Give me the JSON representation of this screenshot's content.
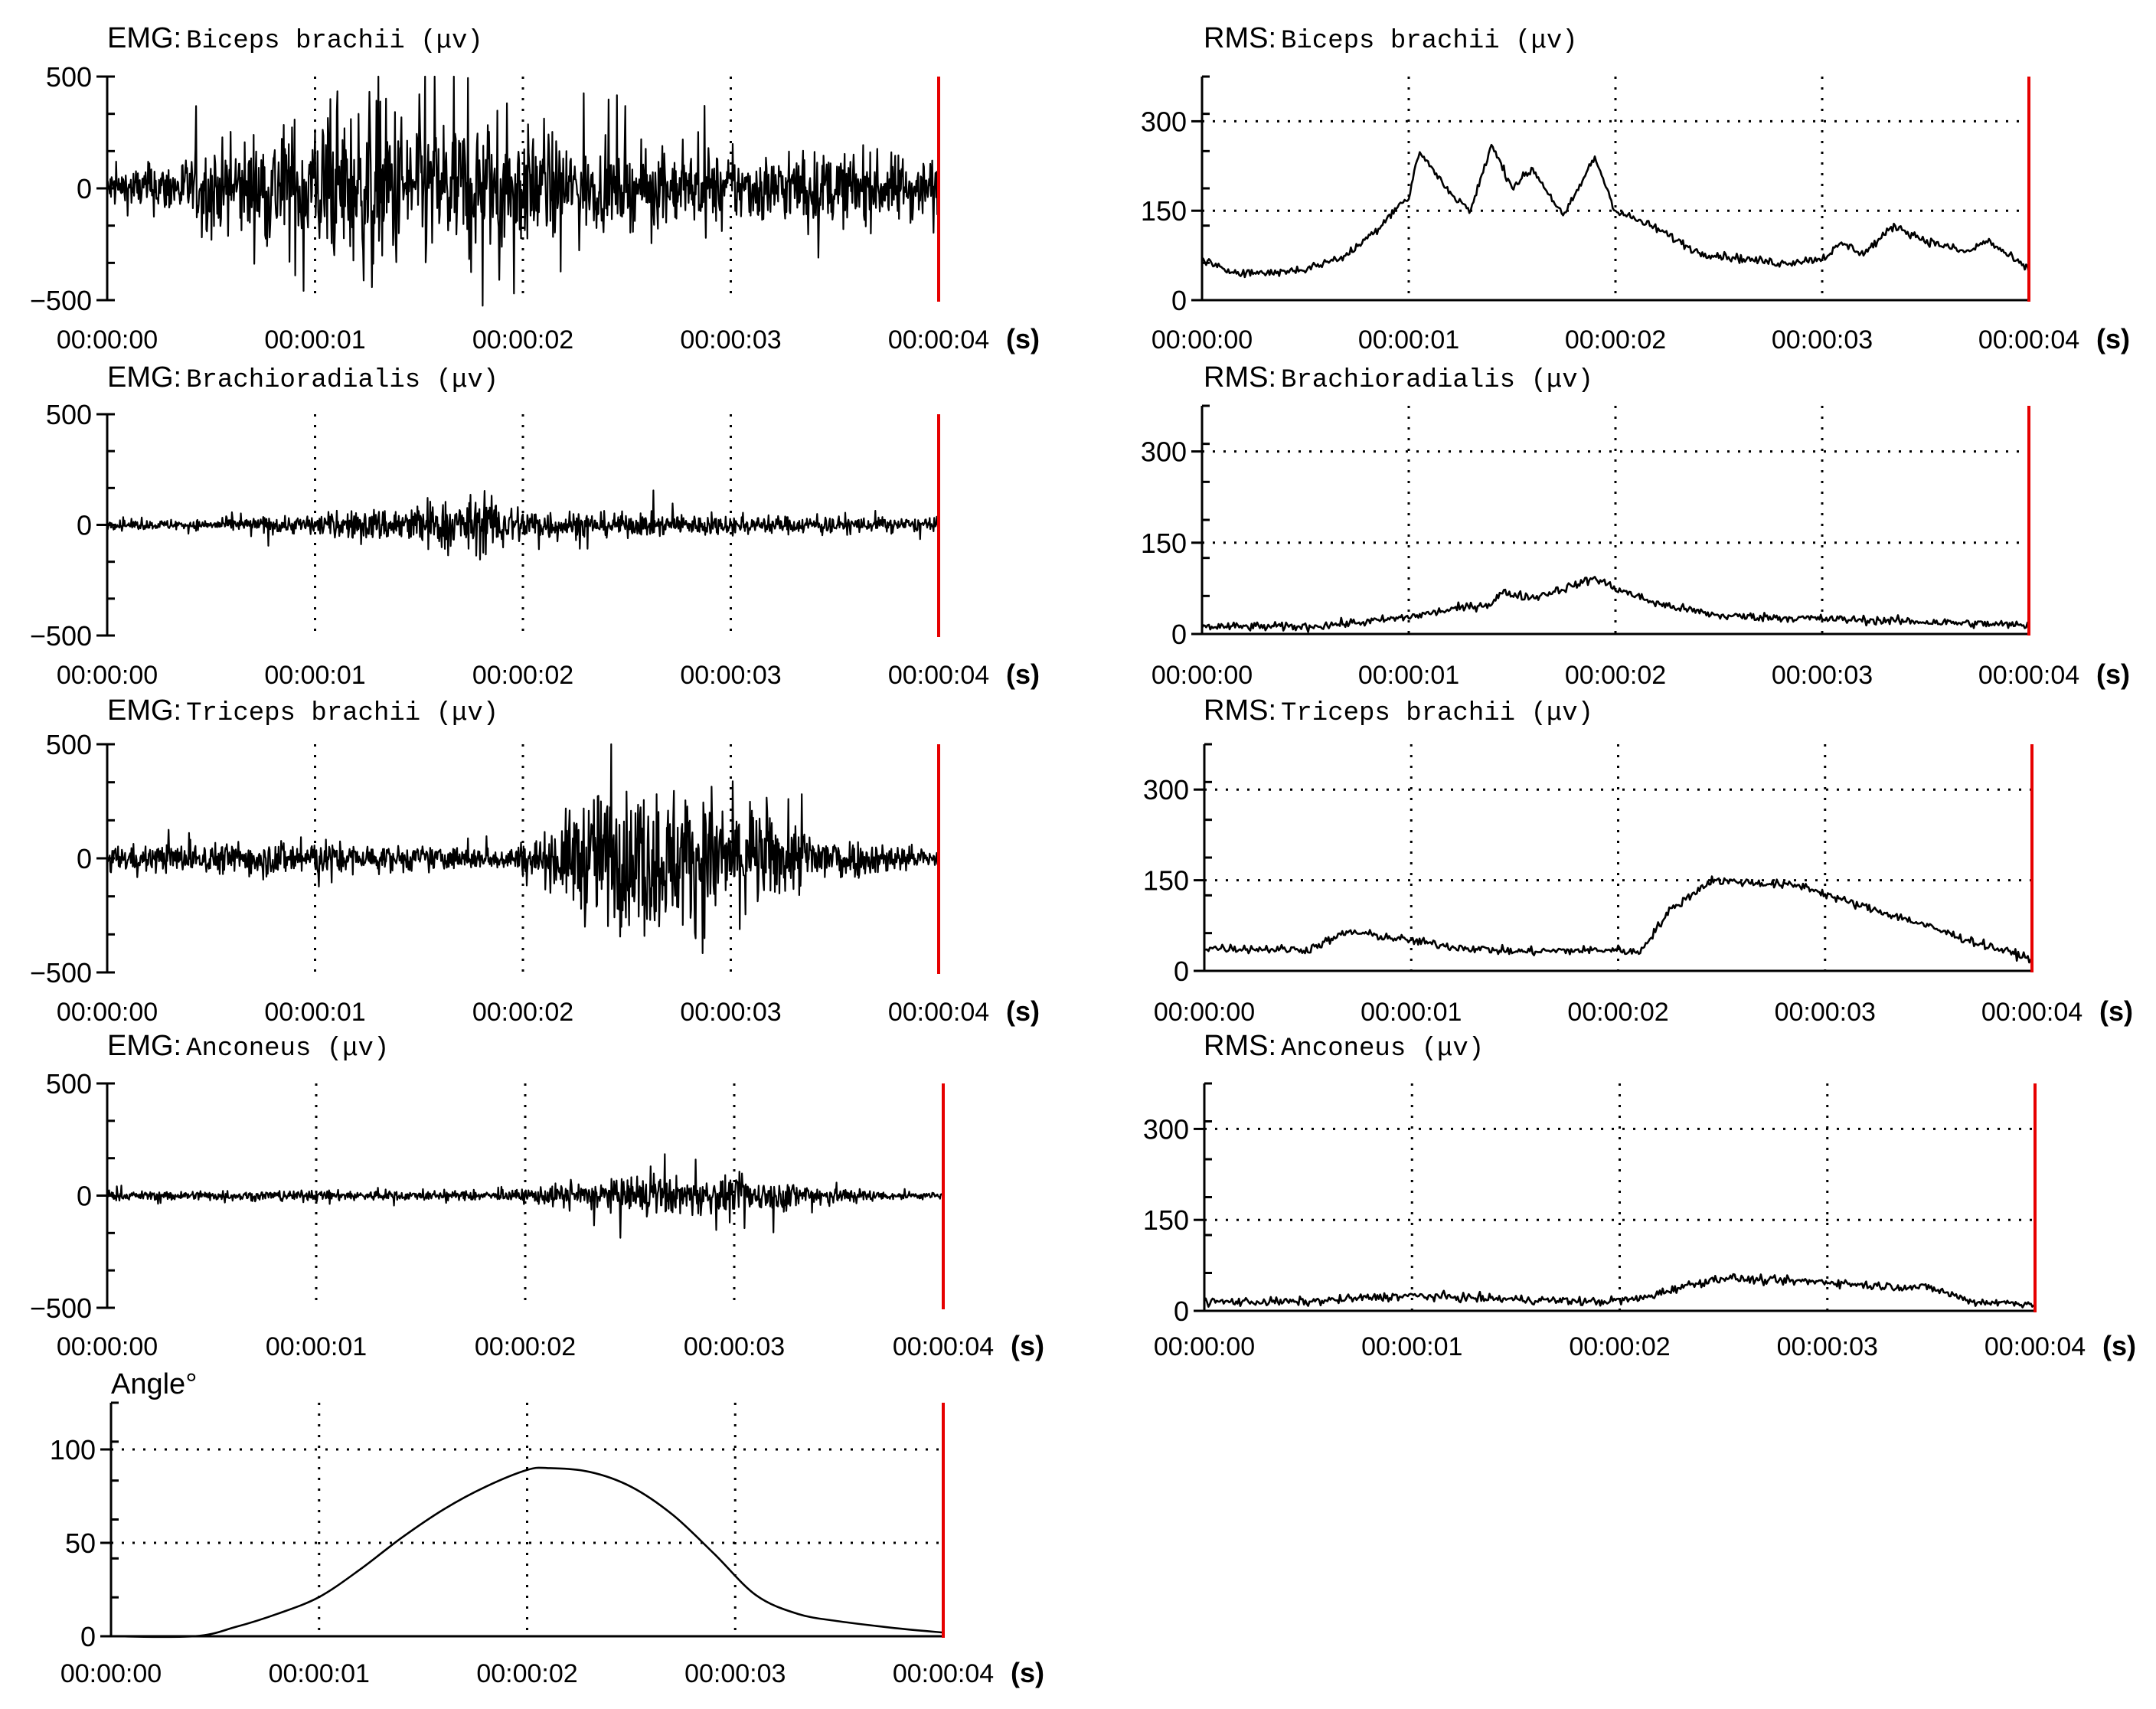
{
  "chart_data": [
    {
      "type": "line",
      "title_main": "EMG:",
      "title_sub": "Biceps brachii (μv)",
      "x_ticks": [
        "00:00:00",
        "00:00:01",
        "00:00:02",
        "00:00:03",
        "00:00:04"
      ],
      "x_unit": "(s)",
      "xlim": [
        0,
        4
      ],
      "y_ticks": [
        "500",
        "0",
        "−500"
      ],
      "y_tick_values": [
        500,
        0,
        -500
      ],
      "ylim": [
        -500,
        500
      ],
      "grid": "vertical-dotted",
      "cursor_color": "#e60000",
      "signal": "emg",
      "envelope": [
        [
          0,
          90
        ],
        [
          0.3,
          130
        ],
        [
          0.6,
          220
        ],
        [
          0.9,
          330
        ],
        [
          1.1,
          360
        ],
        [
          1.3,
          420
        ],
        [
          1.5,
          380
        ],
        [
          1.7,
          340
        ],
        [
          1.9,
          330
        ],
        [
          2.0,
          280
        ],
        [
          2.4,
          180
        ],
        [
          3.0,
          160
        ],
        [
          3.5,
          170
        ],
        [
          4.0,
          150
        ]
      ]
    },
    {
      "type": "line",
      "title_main": "EMG:",
      "title_sub": "Brachioradialis (μv)",
      "x_ticks": [
        "00:00:00",
        "00:00:01",
        "00:00:02",
        "00:00:03",
        "00:00:04"
      ],
      "x_unit": "(s)",
      "xlim": [
        0,
        4
      ],
      "y_ticks": [
        "500",
        "0",
        "−500"
      ],
      "y_tick_values": [
        500,
        0,
        -500
      ],
      "ylim": [
        -500,
        500
      ],
      "grid": "vertical-dotted",
      "cursor_color": "#e60000",
      "signal": "emg",
      "envelope": [
        [
          0,
          20
        ],
        [
          0.5,
          25
        ],
        [
          1.0,
          50
        ],
        [
          1.4,
          90
        ],
        [
          1.8,
          140
        ],
        [
          2.0,
          90
        ],
        [
          2.3,
          60
        ],
        [
          3.0,
          45
        ],
        [
          3.5,
          40
        ],
        [
          4.0,
          30
        ]
      ]
    },
    {
      "type": "line",
      "title_main": "EMG:",
      "title_sub": "Triceps brachii (μv)",
      "x_ticks": [
        "00:00:00",
        "00:00:01",
        "00:00:02",
        "00:00:03",
        "00:00:04"
      ],
      "x_unit": "(s)",
      "xlim": [
        0,
        4
      ],
      "y_ticks": [
        "500",
        "0",
        "−500"
      ],
      "y_tick_values": [
        500,
        0,
        -500
      ],
      "ylim": [
        -500,
        500
      ],
      "grid": "vertical-dotted",
      "cursor_color": "#e60000",
      "signal": "emg",
      "envelope": [
        [
          0,
          60
        ],
        [
          0.5,
          70
        ],
        [
          0.9,
          90
        ],
        [
          1.3,
          60
        ],
        [
          1.9,
          50
        ],
        [
          2.1,
          110
        ],
        [
          2.3,
          300
        ],
        [
          2.6,
          340
        ],
        [
          2.9,
          320
        ],
        [
          3.2,
          200
        ],
        [
          3.6,
          90
        ],
        [
          4.0,
          40
        ]
      ]
    },
    {
      "type": "line",
      "title_main": "EMG:",
      "title_sub": "Anconeus (μv)",
      "x_ticks": [
        "00:00:00",
        "00:00:01",
        "00:00:02",
        "00:00:03",
        "00:00:04"
      ],
      "x_unit": "(s)",
      "xlim": [
        0,
        4
      ],
      "y_ticks": [
        "500",
        "0",
        "−500"
      ],
      "y_tick_values": [
        500,
        0,
        -500
      ],
      "ylim": [
        -500,
        500
      ],
      "grid": "vertical-dotted",
      "cursor_color": "#e60000",
      "signal": "emg",
      "envelope": [
        [
          0,
          20
        ],
        [
          1.0,
          25
        ],
        [
          1.9,
          20
        ],
        [
          2.2,
          60
        ],
        [
          2.6,
          90
        ],
        [
          3.0,
          85
        ],
        [
          3.4,
          60
        ],
        [
          3.7,
          20
        ],
        [
          4.0,
          15
        ]
      ]
    },
    {
      "type": "line",
      "title_main": "Angle°",
      "title_sub": "",
      "x_ticks": [
        "00:00:00",
        "00:00:01",
        "00:00:02",
        "00:00:03",
        "00:00:04"
      ],
      "x_unit": "(s)",
      "xlim": [
        0,
        4
      ],
      "y_ticks": [
        "100",
        "50",
        "0"
      ],
      "y_tick_values": [
        100,
        50,
        0
      ],
      "ylim": [
        0,
        125
      ],
      "grid": "both-dotted",
      "cursor_color": "#e60000",
      "signal": "smooth",
      "points": [
        [
          0,
          0
        ],
        [
          0.4,
          0
        ],
        [
          0.6,
          5
        ],
        [
          0.8,
          12
        ],
        [
          1.0,
          21
        ],
        [
          1.2,
          36
        ],
        [
          1.4,
          53
        ],
        [
          1.6,
          68
        ],
        [
          1.8,
          80
        ],
        [
          2.0,
          89
        ],
        [
          2.1,
          90
        ],
        [
          2.3,
          88
        ],
        [
          2.5,
          80
        ],
        [
          2.7,
          65
        ],
        [
          2.9,
          44
        ],
        [
          3.1,
          22
        ],
        [
          3.3,
          12
        ],
        [
          3.5,
          8
        ],
        [
          3.8,
          4
        ],
        [
          4.0,
          2
        ]
      ]
    },
    {
      "type": "line",
      "title_main": "RMS:",
      "title_sub": "Biceps brachii (μv)",
      "x_ticks": [
        "00:00:00",
        "00:00:01",
        "00:00:02",
        "00:00:03",
        "00:00:04"
      ],
      "x_unit": "(s)",
      "xlim": [
        0,
        4
      ],
      "y_ticks": [
        "300",
        "150",
        "0"
      ],
      "y_tick_values": [
        300,
        150,
        0
      ],
      "ylim": [
        0,
        375
      ],
      "grid": "both-dotted",
      "cursor_color": "#e60000",
      "signal": "rms",
      "points": [
        [
          0,
          70
        ],
        [
          0.1,
          50
        ],
        [
          0.3,
          45
        ],
        [
          0.5,
          52
        ],
        [
          0.7,
          75
        ],
        [
          0.85,
          120
        ],
        [
          0.95,
          160
        ],
        [
          1.0,
          170
        ],
        [
          1.05,
          250
        ],
        [
          1.2,
          180
        ],
        [
          1.3,
          150
        ],
        [
          1.4,
          260
        ],
        [
          1.5,
          190
        ],
        [
          1.6,
          220
        ],
        [
          1.75,
          140
        ],
        [
          1.9,
          240
        ],
        [
          2.0,
          150
        ],
        [
          2.2,
          120
        ],
        [
          2.4,
          80
        ],
        [
          2.6,
          70
        ],
        [
          2.8,
          62
        ],
        [
          3.0,
          70
        ],
        [
          3.1,
          95
        ],
        [
          3.2,
          78
        ],
        [
          3.35,
          125
        ],
        [
          3.5,
          100
        ],
        [
          3.7,
          80
        ],
        [
          3.8,
          100
        ],
        [
          4.0,
          50
        ]
      ]
    },
    {
      "type": "line",
      "title_main": "RMS:",
      "title_sub": "Brachioradialis (μv)",
      "x_ticks": [
        "00:00:00",
        "00:00:01",
        "00:00:02",
        "00:00:03",
        "00:00:04"
      ],
      "x_unit": "(s)",
      "xlim": [
        0,
        4
      ],
      "y_ticks": [
        "300",
        "150",
        "0"
      ],
      "y_tick_values": [
        300,
        150,
        0
      ],
      "ylim": [
        0,
        375
      ],
      "grid": "both-dotted",
      "cursor_color": "#e60000",
      "signal": "rms",
      "points": [
        [
          0,
          12
        ],
        [
          0.5,
          12
        ],
        [
          0.8,
          20
        ],
        [
          1.0,
          28
        ],
        [
          1.2,
          40
        ],
        [
          1.4,
          50
        ],
        [
          1.45,
          68
        ],
        [
          1.6,
          60
        ],
        [
          1.8,
          80
        ],
        [
          1.9,
          92
        ],
        [
          2.0,
          75
        ],
        [
          2.2,
          50
        ],
        [
          2.5,
          30
        ],
        [
          2.8,
          27
        ],
        [
          3.0,
          25
        ],
        [
          3.5,
          20
        ],
        [
          4.0,
          14
        ]
      ]
    },
    {
      "type": "line",
      "title_main": "RMS:",
      "title_sub": "Triceps brachii (μv)",
      "x_ticks": [
        "00:00:00",
        "00:00:01",
        "00:00:02",
        "00:00:03",
        "00:00:04"
      ],
      "x_unit": "(s)",
      "xlim": [
        0,
        4
      ],
      "y_ticks": [
        "300",
        "150",
        "0"
      ],
      "y_tick_values": [
        300,
        150,
        0
      ],
      "ylim": [
        0,
        375
      ],
      "grid": "both-dotted",
      "cursor_color": "#e60000",
      "signal": "rms",
      "points": [
        [
          0,
          38
        ],
        [
          0.5,
          35
        ],
        [
          0.7,
          65
        ],
        [
          0.9,
          55
        ],
        [
          1.2,
          40
        ],
        [
          1.5,
          32
        ],
        [
          2.0,
          35
        ],
        [
          2.1,
          30
        ],
        [
          2.25,
          100
        ],
        [
          2.45,
          150
        ],
        [
          2.7,
          145
        ],
        [
          2.9,
          140
        ],
        [
          3.1,
          115
        ],
        [
          3.4,
          85
        ],
        [
          3.7,
          50
        ],
        [
          4.0,
          20
        ]
      ]
    },
    {
      "type": "line",
      "title_main": "RMS:",
      "title_sub": "Anconeus (μv)",
      "x_ticks": [
        "00:00:00",
        "00:00:01",
        "00:00:02",
        "00:00:03",
        "00:00:04"
      ],
      "x_unit": "(s)",
      "xlim": [
        0,
        4
      ],
      "y_ticks": [
        "300",
        "150",
        "0"
      ],
      "y_tick_values": [
        300,
        150,
        0
      ],
      "ylim": [
        0,
        375
      ],
      "grid": "both-dotted",
      "cursor_color": "#e60000",
      "signal": "rms",
      "points": [
        [
          0,
          15
        ],
        [
          0.5,
          15
        ],
        [
          0.8,
          22
        ],
        [
          1.0,
          25
        ],
        [
          1.4,
          20
        ],
        [
          1.9,
          15
        ],
        [
          2.1,
          20
        ],
        [
          2.3,
          40
        ],
        [
          2.5,
          55
        ],
        [
          2.7,
          50
        ],
        [
          3.0,
          48
        ],
        [
          3.2,
          42
        ],
        [
          3.5,
          38
        ],
        [
          3.7,
          15
        ],
        [
          4.0,
          12
        ]
      ]
    }
  ]
}
